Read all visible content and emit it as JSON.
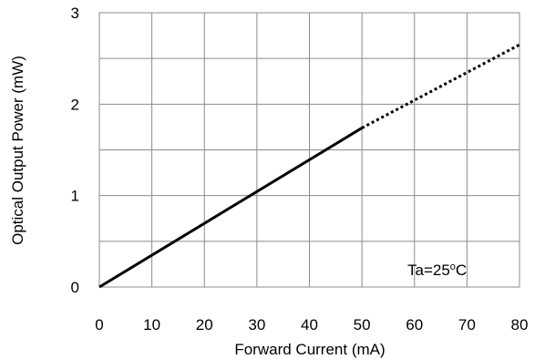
{
  "chart_data": {
    "type": "line",
    "xlabel": "Forward Current  (mA)",
    "ylabel": "Optical Output Power  (mW)",
    "xlim": [
      0,
      80
    ],
    "ylim": [
      0,
      3
    ],
    "x_ticks": [
      "0",
      "10",
      "20",
      "30",
      "40",
      "50",
      "60",
      "70",
      "80"
    ],
    "y_ticks": [
      "0",
      "1",
      "2",
      "3"
    ],
    "grid": true,
    "annotation": {
      "prefix": "Ta=25",
      "superscript": "o",
      "suffix": "C"
    },
    "series": [
      {
        "style": "solid",
        "color": "#000000",
        "x": [
          0,
          50
        ],
        "y": [
          0,
          1.74
        ]
      },
      {
        "style": "dotted",
        "color": "#000000",
        "x": [
          50,
          80
        ],
        "y": [
          1.74,
          2.65
        ]
      }
    ]
  }
}
